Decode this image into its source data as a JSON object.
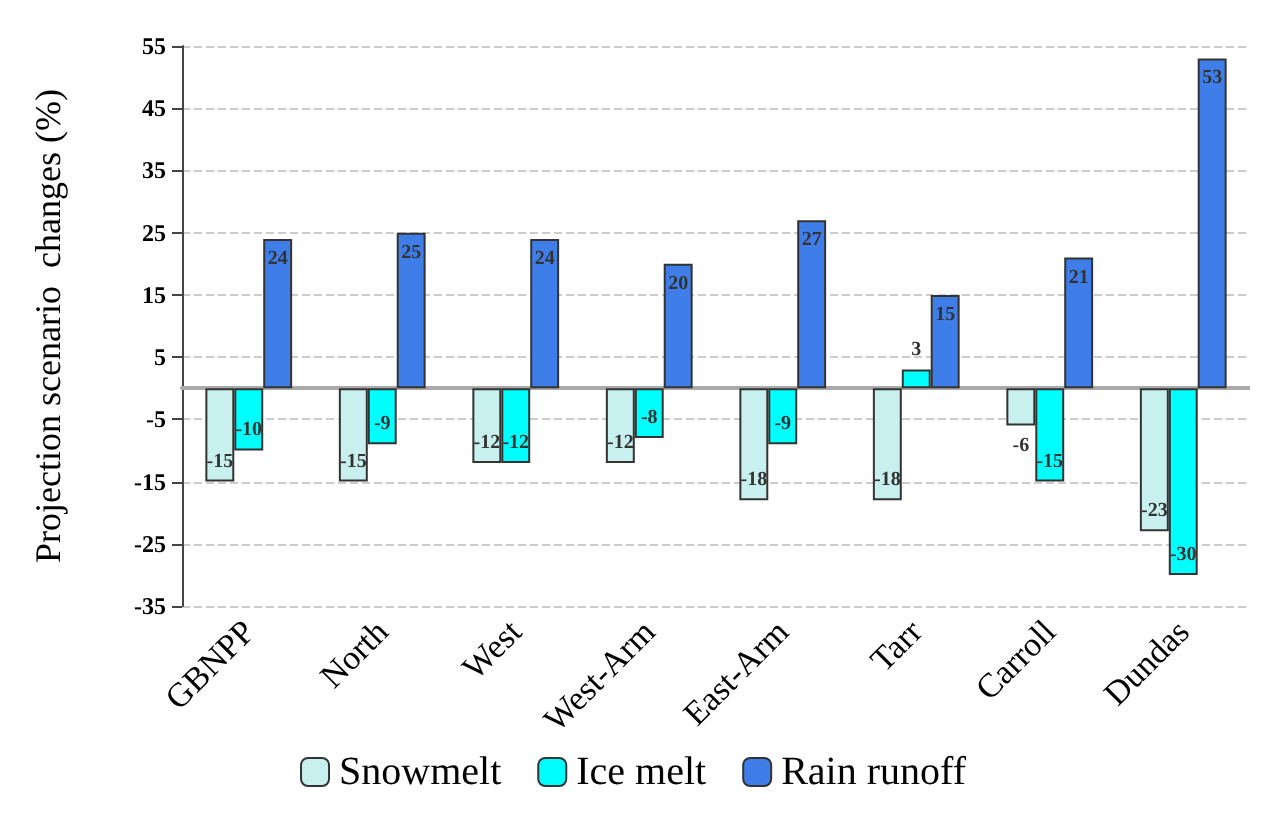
{
  "chart_data": {
    "type": "bar",
    "ylabel": "Projection scenario  changes (%)",
    "categories": [
      "GBNPP",
      "North",
      "West",
      "West-Arm",
      "East-Arm",
      "Tarr",
      "Carroll",
      "Dundas"
    ],
    "series": [
      {
        "name": "Snowmelt",
        "color": "#c8f0ee",
        "values": [
          -15,
          -15,
          -12,
          -12,
          -18,
          -18,
          -6,
          -23
        ]
      },
      {
        "name": "Ice melt",
        "color": "#00ffff",
        "values": [
          -10,
          -9,
          -12,
          -8,
          -9,
          3,
          -15,
          -30
        ]
      },
      {
        "name": "Rain runoff",
        "color": "#3f7ee8",
        "values": [
          24,
          25,
          24,
          20,
          27,
          15,
          21,
          53
        ]
      }
    ],
    "ylim": [
      -35,
      55
    ],
    "yticks": [
      -35,
      -25,
      -15,
      -5,
      5,
      15,
      25,
      35,
      45,
      55
    ],
    "grid": "y",
    "legend": "bottom",
    "data_labels": true
  }
}
